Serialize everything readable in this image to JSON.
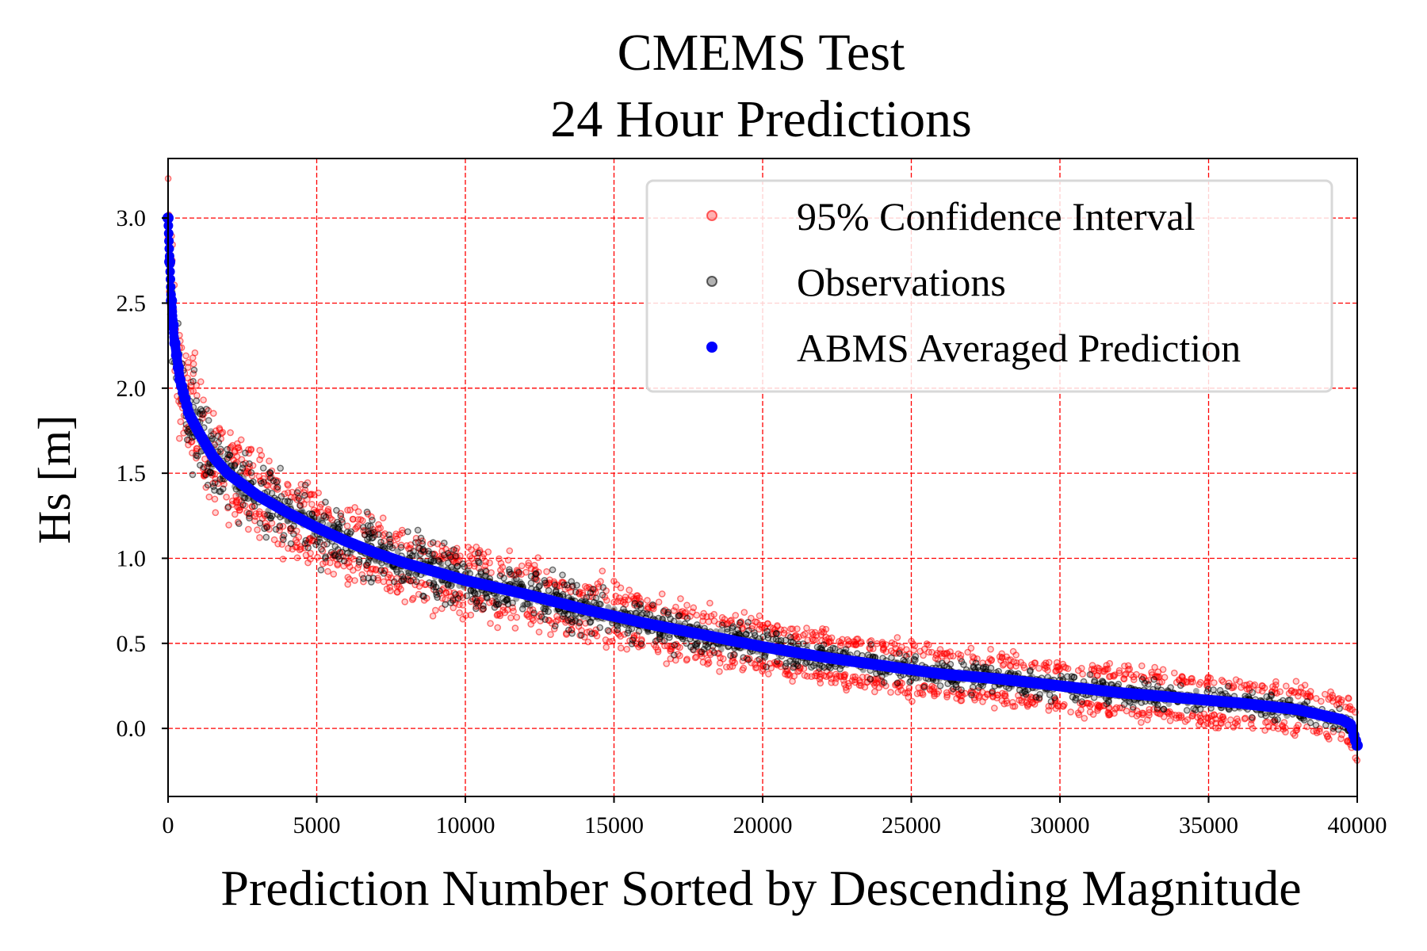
{
  "colors": {
    "interval": "#ff0000",
    "observations": "#000000",
    "prediction": "#0000ff",
    "grid": "#ff0000",
    "axis": "#000000"
  },
  "chart_data": {
    "type": "scatter",
    "title_line1": "CMEMS Test",
    "title_line2": "24 Hour Predictions",
    "xlabel": "Prediction Number Sorted by Descending Magnitude",
    "ylabel": "Hs [m]",
    "xlim": [
      0,
      40000
    ],
    "ylim": [
      -0.4,
      3.35
    ],
    "xticks": [
      0,
      5000,
      10000,
      15000,
      20000,
      25000,
      30000,
      35000,
      40000
    ],
    "xtick_labels": [
      "0",
      "5000",
      "10000",
      "15000",
      "20000",
      "25000",
      "30000",
      "35000",
      "40000"
    ],
    "yticks": [
      0.0,
      0.5,
      1.0,
      1.5,
      2.0,
      2.5,
      3.0
    ],
    "ytick_labels": [
      "0.0",
      "0.5",
      "1.0",
      "1.5",
      "2.0",
      "2.5",
      "3.0"
    ],
    "grid": true,
    "grid_style": "dashed",
    "legend_position": "top-right",
    "legend": [
      "95% Confidence Interval",
      "Observations",
      "ABMS Averaged Prediction"
    ],
    "series": [
      {
        "name": "ABMS Averaged Prediction",
        "marker": "dot",
        "x": [
          0,
          100,
          200,
          400,
          700,
          1000,
          1500,
          2000,
          3000,
          4000,
          5000,
          6000,
          7000,
          8000,
          9000,
          10000,
          12000,
          14000,
          16000,
          18000,
          20000,
          22000,
          24000,
          26000,
          28000,
          30000,
          32000,
          34000,
          36000,
          37000,
          38000,
          39000,
          39500,
          39800,
          39900,
          40000
        ],
        "y": [
          3.0,
          2.55,
          2.3,
          2.05,
          1.85,
          1.75,
          1.6,
          1.5,
          1.37,
          1.27,
          1.18,
          1.1,
          1.03,
          0.97,
          0.92,
          0.87,
          0.79,
          0.7,
          0.62,
          0.55,
          0.48,
          0.42,
          0.37,
          0.32,
          0.29,
          0.25,
          0.21,
          0.18,
          0.15,
          0.13,
          0.11,
          0.07,
          0.05,
          0.02,
          -0.05,
          -0.1
        ]
      },
      {
        "name": "Observations",
        "marker": "hollow-circle",
        "spread": [
          0.35,
          0.25,
          0.2,
          0.18,
          0.12,
          0.1,
          0.08
        ],
        "spread_x": [
          0,
          2000,
          5000,
          10000,
          20000,
          30000,
          40000
        ]
      },
      {
        "name": "95% Confidence Interval",
        "marker": "hollow-circle",
        "upper_offset": 0.08,
        "lower_offset": 0.08
      }
    ]
  }
}
